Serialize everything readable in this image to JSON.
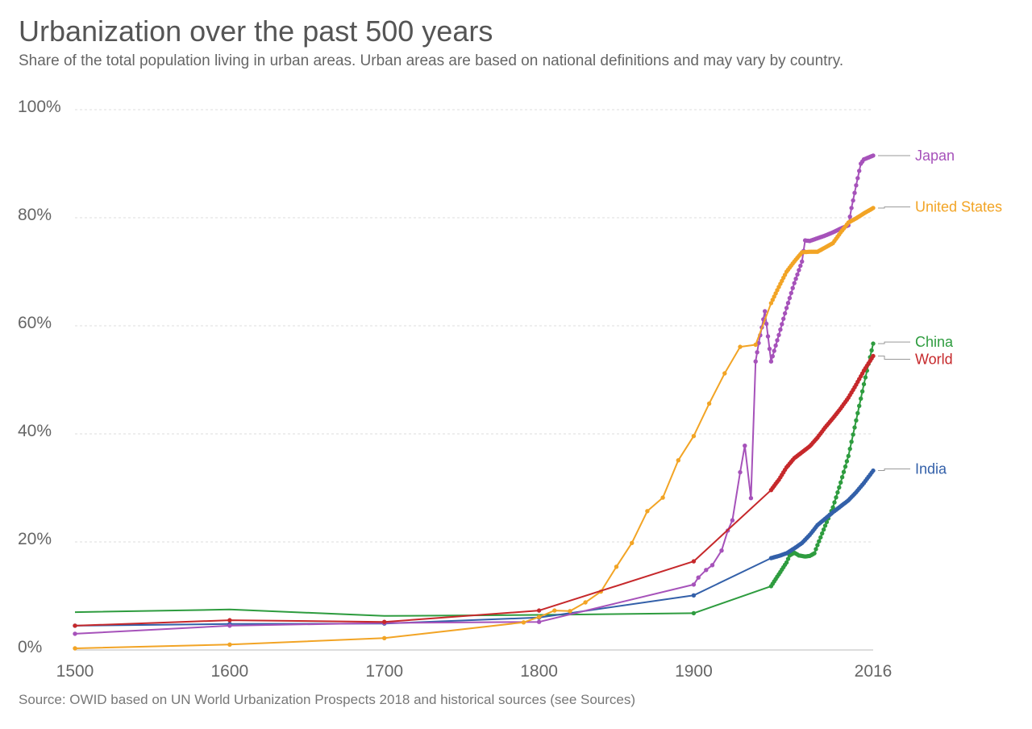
{
  "title": "Urbanization over the past 500 years",
  "subtitle": "Share of the total population living in urban areas. Urban areas are based on national definitions and may vary by country.",
  "source": "Source: OWID based on UN World Urbanization Prospects 2018 and historical sources (see Sources)",
  "chart_data": {
    "type": "line",
    "title": "Urbanization over the past 500 years",
    "xlabel": "",
    "ylabel": "",
    "xlim": [
      1500,
      2016
    ],
    "ylim": [
      0,
      100
    ],
    "x_ticks": [
      1500,
      1600,
      1700,
      1800,
      1900,
      2016
    ],
    "x_tick_labels": [
      "1500",
      "1600",
      "1700",
      "1800",
      "1900",
      "2016"
    ],
    "y_ticks": [
      0,
      20,
      40,
      60,
      80,
      100
    ],
    "y_tick_labels": [
      "0%",
      "20%",
      "40%",
      "60%",
      "80%",
      "100%"
    ],
    "grid": "horizontal dashed",
    "legend": "right-end labels",
    "series": [
      {
        "name": "China",
        "color": "#2e9c3f",
        "points": [
          [
            1500,
            7
          ],
          [
            1600,
            7.5
          ],
          [
            1700,
            6.3
          ],
          [
            1800,
            6.5
          ],
          [
            1900,
            6.8
          ],
          [
            1950,
            11.8
          ],
          [
            1955,
            14
          ],
          [
            1960,
            16.2
          ],
          [
            1962,
            17.5
          ],
          [
            1965,
            18
          ],
          [
            1968,
            17.5
          ],
          [
            1970,
            17.4
          ],
          [
            1972,
            17.3
          ],
          [
            1975,
            17.4
          ],
          [
            1978,
            17.9
          ],
          [
            1980,
            19.4
          ],
          [
            1985,
            23
          ],
          [
            1990,
            26.4
          ],
          [
            1995,
            31
          ],
          [
            2000,
            35.9
          ],
          [
            2005,
            42.5
          ],
          [
            2010,
            49.2
          ],
          [
            2016,
            56.7
          ]
        ],
        "marker_points": [
          1900,
          1950,
          1955,
          1960,
          1965,
          1970,
          1975,
          1980,
          1985,
          1990,
          1995,
          2000,
          2005,
          2010,
          2016
        ]
      },
      {
        "name": "India",
        "color": "#3360a9",
        "points": [
          [
            1500,
            4.5
          ],
          [
            1600,
            4.8
          ],
          [
            1700,
            4.9
          ],
          [
            1800,
            6
          ],
          [
            1900,
            10.1
          ],
          [
            1950,
            17
          ],
          [
            1955,
            17.4
          ],
          [
            1960,
            17.9
          ],
          [
            1965,
            18.8
          ],
          [
            1970,
            19.8
          ],
          [
            1975,
            21.3
          ],
          [
            1980,
            23.1
          ],
          [
            1985,
            24.3
          ],
          [
            1990,
            25.5
          ],
          [
            1995,
            26.6
          ],
          [
            2000,
            27.7
          ],
          [
            2005,
            29.2
          ],
          [
            2010,
            30.9
          ],
          [
            2016,
            33.2
          ]
        ],
        "marker_points": [
          1500,
          1600,
          1700,
          1800,
          1900,
          1950,
          1955,
          1960,
          1965,
          1970,
          1975,
          1980,
          1985,
          1990,
          1995,
          2000,
          2005,
          2010,
          2016
        ]
      },
      {
        "name": "Japan",
        "color": "#a652ba",
        "points": [
          [
            1500,
            3
          ],
          [
            1600,
            4.5
          ],
          [
            1700,
            5
          ],
          [
            1800,
            5.2
          ],
          [
            1900,
            12.1
          ],
          [
            1903,
            13.4
          ],
          [
            1908,
            14.8
          ],
          [
            1912,
            15.7
          ],
          [
            1918,
            18.4
          ],
          [
            1922,
            22.1
          ],
          [
            1925,
            24
          ],
          [
            1930,
            32.9
          ],
          [
            1933,
            37.8
          ],
          [
            1937,
            28.1
          ],
          [
            1940,
            53.4
          ],
          [
            1942,
            56.8
          ],
          [
            1944,
            59.7
          ],
          [
            1946,
            62.7
          ],
          [
            1950,
            53.4
          ],
          [
            1955,
            58.3
          ],
          [
            1960,
            63.3
          ],
          [
            1965,
            67.9
          ],
          [
            1970,
            71.9
          ],
          [
            1972,
            75.8
          ],
          [
            1975,
            75.7
          ],
          [
            1980,
            76.2
          ],
          [
            1985,
            76.7
          ],
          [
            1990,
            77.3
          ],
          [
            1995,
            78
          ],
          [
            2000,
            78.6
          ],
          [
            2002,
            81.8
          ],
          [
            2005,
            86
          ],
          [
            2008,
            90
          ],
          [
            2010,
            90.8
          ],
          [
            2016,
            91.5
          ]
        ],
        "marker_points": [
          1500,
          1600,
          1700,
          1800,
          1900,
          1903,
          1908,
          1912,
          1918,
          1922,
          1925,
          1930,
          1933,
          1937,
          1940,
          1942,
          1944,
          1946,
          1950,
          1955,
          1960,
          1965,
          1970,
          1972,
          1975,
          1980,
          1985,
          1990,
          1995,
          2000,
          2002,
          2005,
          2008,
          2010,
          2016
        ]
      },
      {
        "name": "United States",
        "color": "#f2a425",
        "points": [
          [
            1500,
            0.3
          ],
          [
            1600,
            1
          ],
          [
            1700,
            2.2
          ],
          [
            1790,
            5.1
          ],
          [
            1800,
            6.1
          ],
          [
            1810,
            7.3
          ],
          [
            1820,
            7.2
          ],
          [
            1830,
            8.8
          ],
          [
            1840,
            10.8
          ],
          [
            1850,
            15.4
          ],
          [
            1860,
            19.8
          ],
          [
            1870,
            25.7
          ],
          [
            1880,
            28.2
          ],
          [
            1890,
            35.1
          ],
          [
            1900,
            39.6
          ],
          [
            1910,
            45.6
          ],
          [
            1920,
            51.2
          ],
          [
            1930,
            56.1
          ],
          [
            1940,
            56.5
          ],
          [
            1950,
            64.2
          ],
          [
            1955,
            67.2
          ],
          [
            1960,
            70
          ],
          [
            1965,
            71.9
          ],
          [
            1970,
            73.6
          ],
          [
            1975,
            73.7
          ],
          [
            1980,
            73.7
          ],
          [
            1985,
            74.5
          ],
          [
            1990,
            75.3
          ],
          [
            1995,
            77.3
          ],
          [
            2000,
            79.1
          ],
          [
            2005,
            79.9
          ],
          [
            2010,
            80.8
          ],
          [
            2016,
            81.8
          ]
        ],
        "marker_points": [
          1500,
          1600,
          1700,
          1790,
          1800,
          1810,
          1820,
          1830,
          1840,
          1850,
          1860,
          1870,
          1880,
          1890,
          1900,
          1910,
          1920,
          1930,
          1940,
          1950,
          1955,
          1960,
          1965,
          1970,
          1975,
          1980,
          1985,
          1990,
          1995,
          2000,
          2005,
          2010,
          2016
        ]
      },
      {
        "name": "World",
        "color": "#c6282b",
        "points": [
          [
            1500,
            4.5
          ],
          [
            1600,
            5.5
          ],
          [
            1700,
            5.2
          ],
          [
            1800,
            7.3
          ],
          [
            1900,
            16.4
          ],
          [
            1950,
            29.6
          ],
          [
            1955,
            31.5
          ],
          [
            1960,
            33.8
          ],
          [
            1965,
            35.5
          ],
          [
            1970,
            36.6
          ],
          [
            1975,
            37.7
          ],
          [
            1980,
            39.3
          ],
          [
            1985,
            41.2
          ],
          [
            1990,
            42.9
          ],
          [
            1995,
            44.7
          ],
          [
            2000,
            46.7
          ],
          [
            2005,
            49.1
          ],
          [
            2010,
            51.7
          ],
          [
            2016,
            54.4
          ]
        ],
        "marker_points": [
          1500,
          1600,
          1700,
          1800,
          1900,
          1950,
          1955,
          1960,
          1965,
          1970,
          1975,
          1980,
          1985,
          1990,
          1995,
          2000,
          2005,
          2010,
          2016
        ]
      }
    ],
    "end_labels": [
      {
        "name": "Japan",
        "value": 91.5,
        "label_value": 91.5
      },
      {
        "name": "United States",
        "value": 81.8,
        "label_value": 82
      },
      {
        "name": "China",
        "value": 56.7,
        "label_value": 57
      },
      {
        "name": "World",
        "value": 54.4,
        "label_value": 53.8
      },
      {
        "name": "India",
        "value": 33.2,
        "label_value": 33.5
      }
    ]
  }
}
